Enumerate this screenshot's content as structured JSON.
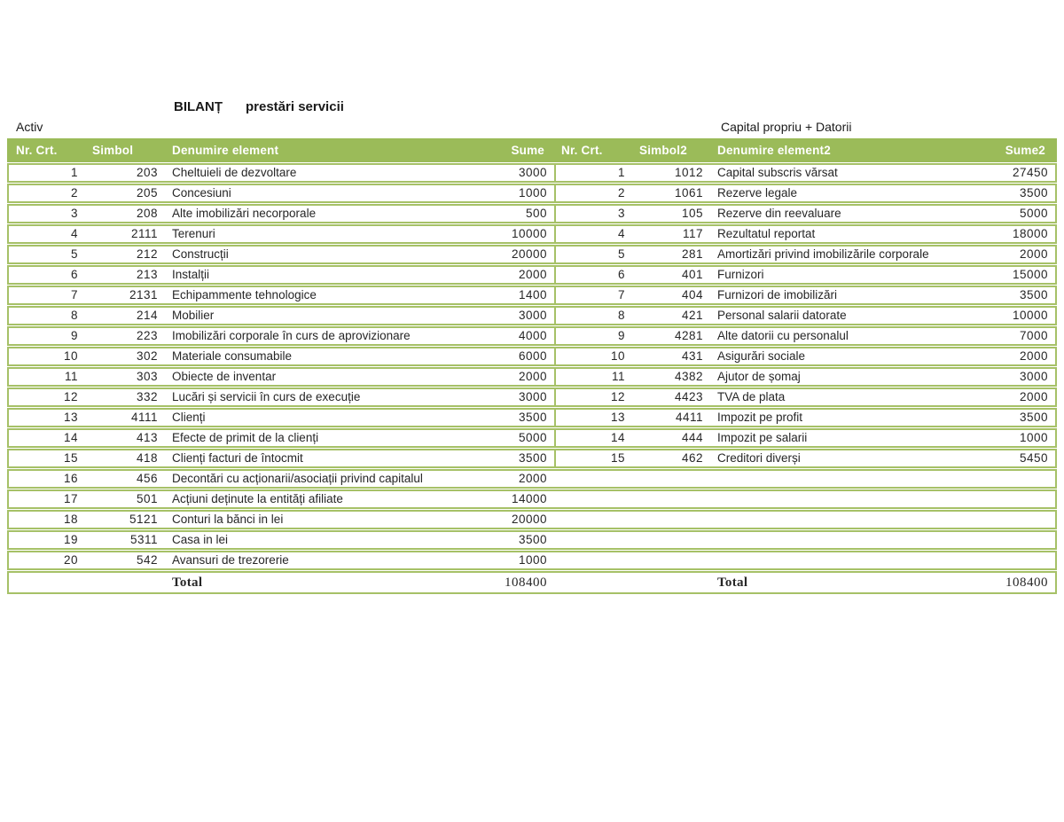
{
  "theme": {
    "accent": "#9bbb59",
    "border": "#a6c167",
    "header_text": "#ffffff"
  },
  "page": {
    "title_main": "BILANȚ",
    "title_sub": "prestări servicii",
    "left_section_label": "Activ",
    "right_section_label": "Capital propriu + Datorii"
  },
  "table": {
    "headers": {
      "nr": "Nr. Crt.",
      "simbol": "Simbol",
      "den": "Denumire element",
      "sume": "Sume",
      "nr2": "Nr. Crt.",
      "simbol2": "Simbol2",
      "den2": "Denumire element2",
      "sume2": "Sume2"
    },
    "rows": [
      {
        "l_nr": "1",
        "l_sim": "203",
        "l_den": "Cheltuieli de dezvoltare",
        "l_sum": "3000",
        "r_nr": "1",
        "r_sim": "1012",
        "r_den": "Capital subscris vărsat",
        "r_sum": "27450",
        "has_right": true
      },
      {
        "l_nr": "2",
        "l_sim": "205",
        "l_den": "Concesiuni",
        "l_sum": "1000",
        "r_nr": "2",
        "r_sim": "1061",
        "r_den": "Rezerve legale",
        "r_sum": "3500",
        "has_right": true
      },
      {
        "l_nr": "3",
        "l_sim": "208",
        "l_den": "Alte imobilizări necorporale",
        "l_sum": "500",
        "r_nr": "3",
        "r_sim": "105",
        "r_den": "Rezerve din reevaluare",
        "r_sum": "5000",
        "has_right": true
      },
      {
        "l_nr": "4",
        "l_sim": "2111",
        "l_den": "Terenuri",
        "l_sum": "10000",
        "r_nr": "4",
        "r_sim": "117",
        "r_den": "Rezultatul reportat",
        "r_sum": "18000",
        "has_right": true
      },
      {
        "l_nr": "5",
        "l_sim": "212",
        "l_den": "Construcții",
        "l_sum": "20000",
        "r_nr": "5",
        "r_sim": "281",
        "r_den": "Amortizări privind imobilizările corporale",
        "r_sum": "2000",
        "has_right": true
      },
      {
        "l_nr": "6",
        "l_sim": "213",
        "l_den": "Instalții",
        "l_sum": "2000",
        "r_nr": "6",
        "r_sim": "401",
        "r_den": "Furnizori",
        "r_sum": "15000",
        "has_right": true
      },
      {
        "l_nr": "7",
        "l_sim": "2131",
        "l_den": "Echipammente tehnologice",
        "l_sum": "1400",
        "r_nr": "7",
        "r_sim": "404",
        "r_den": "Furnizori de imobilizări",
        "r_sum": "3500",
        "has_right": true
      },
      {
        "l_nr": "8",
        "l_sim": "214",
        "l_den": "Mobilier",
        "l_sum": "3000",
        "r_nr": "8",
        "r_sim": "421",
        "r_den": "Personal salarii datorate",
        "r_sum": "10000",
        "has_right": true
      },
      {
        "l_nr": "9",
        "l_sim": "223",
        "l_den": "Imobilizări corporale în curs de aprovizionare",
        "l_sum": "4000",
        "r_nr": "9",
        "r_sim": "4281",
        "r_den": "Alte datorii cu personalul",
        "r_sum": "7000",
        "has_right": true
      },
      {
        "l_nr": "10",
        "l_sim": "302",
        "l_den": "Materiale consumabile",
        "l_sum": "6000",
        "r_nr": "10",
        "r_sim": "431",
        "r_den": "Asigurări sociale",
        "r_sum": "2000",
        "has_right": true
      },
      {
        "l_nr": "11",
        "l_sim": "303",
        "l_den": "Obiecte de inventar",
        "l_sum": "2000",
        "r_nr": "11",
        "r_sim": "4382",
        "r_den": "Ajutor de șomaj",
        "r_sum": "3000",
        "has_right": true
      },
      {
        "l_nr": "12",
        "l_sim": "332",
        "l_den": "Lucări și servicii în curs de execuție",
        "l_sum": "3000",
        "r_nr": "12",
        "r_sim": "4423",
        "r_den": "TVA de plata",
        "r_sum": "2000",
        "has_right": true
      },
      {
        "l_nr": "13",
        "l_sim": "4111",
        "l_den": "Clienți",
        "l_sum": "3500",
        "r_nr": "13",
        "r_sim": "4411",
        "r_den": "Impozit pe profit",
        "r_sum": "3500",
        "has_right": true
      },
      {
        "l_nr": "14",
        "l_sim": "413",
        "l_den": "Efecte de primit de la clienți",
        "l_sum": "5000",
        "r_nr": "14",
        "r_sim": "444",
        "r_den": "Impozit pe salarii",
        "r_sum": "1000",
        "has_right": true
      },
      {
        "l_nr": "15",
        "l_sim": "418",
        "l_den": "Clienți facturi de întocmit",
        "l_sum": "3500",
        "r_nr": "15",
        "r_sim": "462",
        "r_den": "Creditori diverși",
        "r_sum": "5450",
        "has_right": true
      },
      {
        "l_nr": "16",
        "l_sim": "456",
        "l_den": "Decontări cu acționarii/asociații privind capitalul",
        "l_sum": "2000",
        "r_nr": "",
        "r_sim": "",
        "r_den": "",
        "r_sum": "",
        "has_right": false
      },
      {
        "l_nr": "17",
        "l_sim": "501",
        "l_den": "Acțiuni deținute la entități afiliate",
        "l_sum": "14000",
        "r_nr": "",
        "r_sim": "",
        "r_den": "",
        "r_sum": "",
        "has_right": false
      },
      {
        "l_nr": "18",
        "l_sim": "5121",
        "l_den": "Conturi la bănci in lei",
        "l_sum": "20000",
        "r_nr": "",
        "r_sim": "",
        "r_den": "",
        "r_sum": "",
        "has_right": false
      },
      {
        "l_nr": "19",
        "l_sim": "5311",
        "l_den": "Casa in lei",
        "l_sum": "3500",
        "r_nr": "",
        "r_sim": "",
        "r_den": "",
        "r_sum": "",
        "has_right": false
      },
      {
        "l_nr": "20",
        "l_sim": "542",
        "l_den": "Avansuri de trezorerie",
        "l_sum": "1000",
        "r_nr": "",
        "r_sim": "",
        "r_den": "",
        "r_sum": "",
        "has_right": false
      }
    ],
    "total": {
      "label_left": "Total",
      "sum_left": "108400",
      "label_right": "Total",
      "sum_right": "108400"
    }
  }
}
